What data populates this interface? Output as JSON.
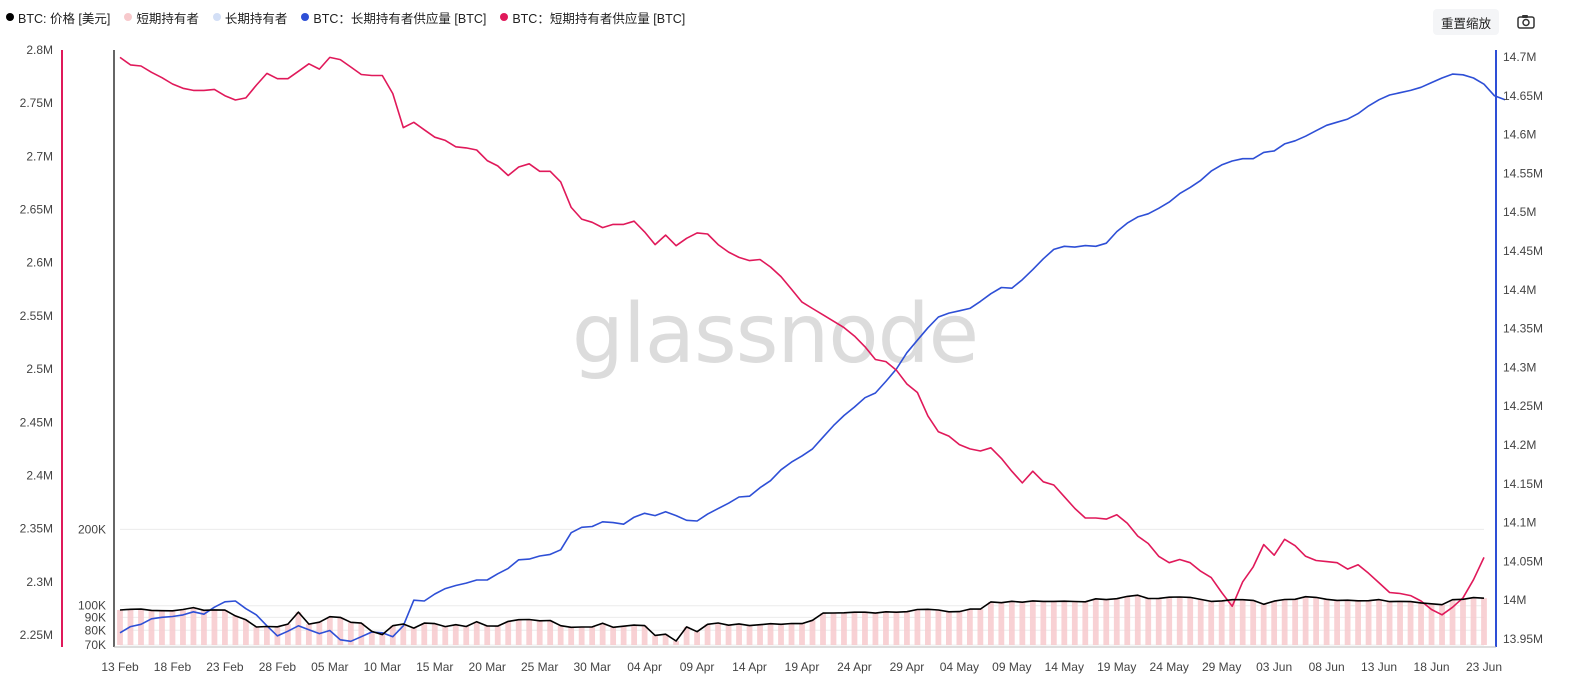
{
  "legend": [
    {
      "label": "BTC: 价格 [美元]",
      "color": "#000000"
    },
    {
      "label": "短期持有者",
      "color": "#f7c9cc"
    },
    {
      "label": "长期持有者",
      "color": "#d3dff6"
    },
    {
      "label": "BTC：长期持有者供应量 [BTC]",
      "color": "#2e4fd6"
    },
    {
      "label": "BTC：短期持有者供应量 [BTC]",
      "color": "#e0195a"
    }
  ],
  "toolbar": {
    "reset_label": "重置缩放",
    "camera_icon": "camera-icon"
  },
  "watermark": "glassnode",
  "colors": {
    "price": "#000000",
    "fill": "#f7c9cc",
    "lth": "#2e4fd6",
    "sth": "#e0195a"
  },
  "chart_data": {
    "type": "line",
    "x_start": "13 Feb",
    "x_ticks": [
      "13 Feb",
      "18 Feb",
      "23 Feb",
      "28 Feb",
      "05 Mar",
      "10 Mar",
      "15 Mar",
      "20 Mar",
      "25 Mar",
      "30 Mar",
      "04 Apr",
      "09 Apr",
      "14 Apr",
      "19 Apr",
      "24 Apr",
      "29 Apr",
      "04 May",
      "09 May",
      "14 May",
      "19 May",
      "24 May",
      "29 May",
      "03 Jun",
      "08 Jun",
      "13 Jun",
      "18 Jun",
      "23 Jun"
    ],
    "axes": {
      "left": {
        "ticks": [
          "2.25M",
          "2.3M",
          "2.35M",
          "2.4M",
          "2.45M",
          "2.5M",
          "2.55M",
          "2.6M",
          "2.65M",
          "2.7M",
          "2.75M",
          "2.8M"
        ],
        "range": [
          2250000,
          2810000
        ]
      },
      "price": {
        "ticks": [
          "70K",
          "80K",
          "90K",
          "100K",
          "200K"
        ],
        "scale": "log",
        "range": [
          70000,
          200000
        ]
      },
      "right": {
        "ticks": [
          "13.95M",
          "14M",
          "14.05M",
          "14.1M",
          "14.15M",
          "14.2M",
          "14.25M",
          "14.3M",
          "14.35M",
          "14.4M",
          "14.45M",
          "14.5M",
          "14.55M",
          "14.6M",
          "14.65M",
          "14.7M"
        ],
        "range": [
          13945000,
          14720000
        ]
      }
    },
    "series": [
      {
        "name": "BTC: 价格 [美元]",
        "axis": "price",
        "values": [
          96200,
          96800,
          97000,
          95800,
          95600,
          95500,
          96600,
          98300,
          95900,
          96300,
          96100,
          91200,
          88000,
          82400,
          82800,
          82600,
          84600,
          94400,
          84600,
          86100,
          90500,
          89900,
          86000,
          85400,
          79200,
          76900,
          83400,
          84700,
          81600,
          85400,
          85000,
          82700,
          84200,
          82800,
          86500,
          83200,
          83100,
          86700,
          88100,
          88200,
          87200,
          87400,
          83400,
          82200,
          82400,
          82500,
          85300,
          82200,
          83000,
          83900,
          83500,
          76400,
          77200,
          72600,
          82500,
          79000,
          84500,
          85500,
          83800,
          84800,
          83500,
          84200,
          84900,
          84500,
          85100,
          85000,
          87600,
          93500,
          93600,
          93800,
          94300,
          94300,
          93500,
          94600,
          94300,
          94700,
          96600,
          96800,
          96200,
          94600,
          94800,
          97000,
          97000,
          103500,
          102800,
          104100,
          103200,
          104500,
          104000,
          104000,
          104200,
          103900,
          103600,
          106500,
          105700,
          106600,
          108800,
          110000,
          106800,
          106900,
          108000,
          108200,
          107800,
          105900,
          104000,
          104500,
          105600,
          105600,
          104900,
          101300,
          104300,
          105800,
          106000,
          108500,
          107800,
          106000,
          104900,
          105100,
          104600,
          104700,
          105700,
          103800,
          104000,
          103800,
          102600,
          101800,
          100900,
          105600,
          106000,
          107600,
          107100
        ]
      },
      {
        "name": "BTC：长期持有者供应量 [BTC]",
        "axis": "right",
        "values": [
          13958000,
          13966000,
          13969000,
          13976000,
          13978000,
          13979000,
          13981000,
          13985000,
          13982000,
          13991000,
          13998000,
          13999000,
          13989000,
          13981000,
          13967000,
          13954000,
          13960000,
          13967000,
          13962000,
          13957000,
          13961000,
          13949000,
          13947000,
          13953000,
          13959000,
          13958000,
          13953000,
          13967000,
          14000000,
          13999000,
          14008000,
          14015000,
          14019000,
          14022000,
          14026000,
          14026000,
          14034000,
          14041000,
          14052000,
          14053000,
          14057000,
          14059000,
          14065000,
          14087000,
          14094000,
          14095000,
          14101000,
          14100000,
          14098000,
          14107000,
          14112000,
          14109000,
          14114000,
          14109000,
          14103000,
          14102000,
          14111000,
          14118000,
          14125000,
          14133000,
          14134000,
          14145000,
          14154000,
          14168000,
          14178000,
          14186000,
          14195000,
          14210000,
          14225000,
          14238000,
          14249000,
          14261000,
          14267000,
          14282000,
          14298000,
          14319000,
          14335000,
          14351000,
          14365000,
          14370000,
          14373000,
          14376000,
          14385000,
          14395000,
          14403000,
          14402000,
          14413000,
          14426000,
          14440000,
          14452000,
          14456000,
          14455000,
          14457000,
          14456000,
          14460000,
          14475000,
          14486000,
          14494000,
          14498000,
          14505000,
          14513000,
          14524000,
          14532000,
          14541000,
          14553000,
          14561000,
          14566000,
          14569000,
          14569000,
          14577000,
          14579000,
          14588000,
          14592000,
          14598000,
          14605000,
          14612000,
          14616000,
          14620000,
          14627000,
          14637000,
          14645000,
          14651000,
          14654000,
          14657000,
          14661000,
          14667000,
          14673000,
          14678000,
          14677000,
          14673000,
          14665000,
          14650000,
          14645000
        ]
      },
      {
        "name": "BTC：短期持有者供应量 [BTC]",
        "axis": "left",
        "values": [
          2793000,
          2786000,
          2785000,
          2779000,
          2774000,
          2768000,
          2764000,
          2762000,
          2762000,
          2763000,
          2757000,
          2753000,
          2755000,
          2767000,
          2778000,
          2773000,
          2773000,
          2780000,
          2787000,
          2782000,
          2793000,
          2791000,
          2784000,
          2777000,
          2776000,
          2776000,
          2759000,
          2727000,
          2732000,
          2725000,
          2718000,
          2715000,
          2709000,
          2708000,
          2706000,
          2696000,
          2691000,
          2682000,
          2690000,
          2693000,
          2686000,
          2686000,
          2676000,
          2652000,
          2641000,
          2638000,
          2633000,
          2636000,
          2636000,
          2639000,
          2629000,
          2617000,
          2626000,
          2616000,
          2623000,
          2628000,
          2627000,
          2617000,
          2610000,
          2605000,
          2602000,
          2603000,
          2596000,
          2587000,
          2575000,
          2563000,
          2557000,
          2551000,
          2545000,
          2539000,
          2531000,
          2521000,
          2509000,
          2507000,
          2499000,
          2486000,
          2478000,
          2456000,
          2441000,
          2437000,
          2429000,
          2425000,
          2423000,
          2426000,
          2416000,
          2404000,
          2393000,
          2404000,
          2394000,
          2391000,
          2380000,
          2369000,
          2360000,
          2360000,
          2359000,
          2363000,
          2355000,
          2343000,
          2336000,
          2324000,
          2318000,
          2321000,
          2318000,
          2310000,
          2304000,
          2290000,
          2277000,
          2300000,
          2314000,
          2335000,
          2325000,
          2340000,
          2334000,
          2324000,
          2320000,
          2319000,
          2318000,
          2312000,
          2316000,
          2308000,
          2299000,
          2290000,
          2289000,
          2287000,
          2282000,
          2274000,
          2269000,
          2276000,
          2285000,
          2302000,
          2323000
        ]
      }
    ]
  }
}
